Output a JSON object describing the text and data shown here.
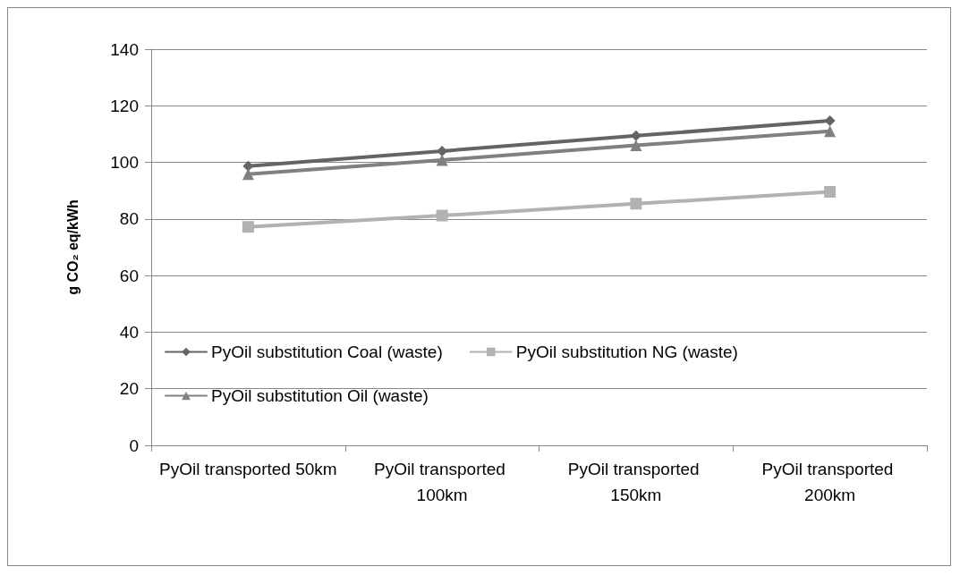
{
  "chart_data": {
    "type": "line",
    "ylabel": "g CO₂ eq/kWh",
    "categories": [
      "PyOil transported 50km",
      "PyOil transported 100km",
      "PyOil transported 150km",
      "PyOil transported 200km"
    ],
    "series": [
      {
        "name": "PyOil substitution Coal (waste)",
        "color": "#646464",
        "marker": "diamond",
        "values": [
          98.7,
          104,
          109.4,
          114.7
        ]
      },
      {
        "name": "PyOil substitution NG (waste)",
        "color": "#b2b2b2",
        "marker": "square",
        "values": [
          77.2,
          81.2,
          85.4,
          89.6
        ]
      },
      {
        "name": "PyOil substitution Oil (waste)",
        "color": "#808080",
        "marker": "triangle",
        "values": [
          95.8,
          100.8,
          106,
          111
        ]
      }
    ],
    "ylim": [
      0,
      140
    ],
    "yticks": [
      0,
      20,
      40,
      60,
      80,
      100,
      120,
      140
    ],
    "grid": "y",
    "legend": "left",
    "line_style": "solid"
  }
}
